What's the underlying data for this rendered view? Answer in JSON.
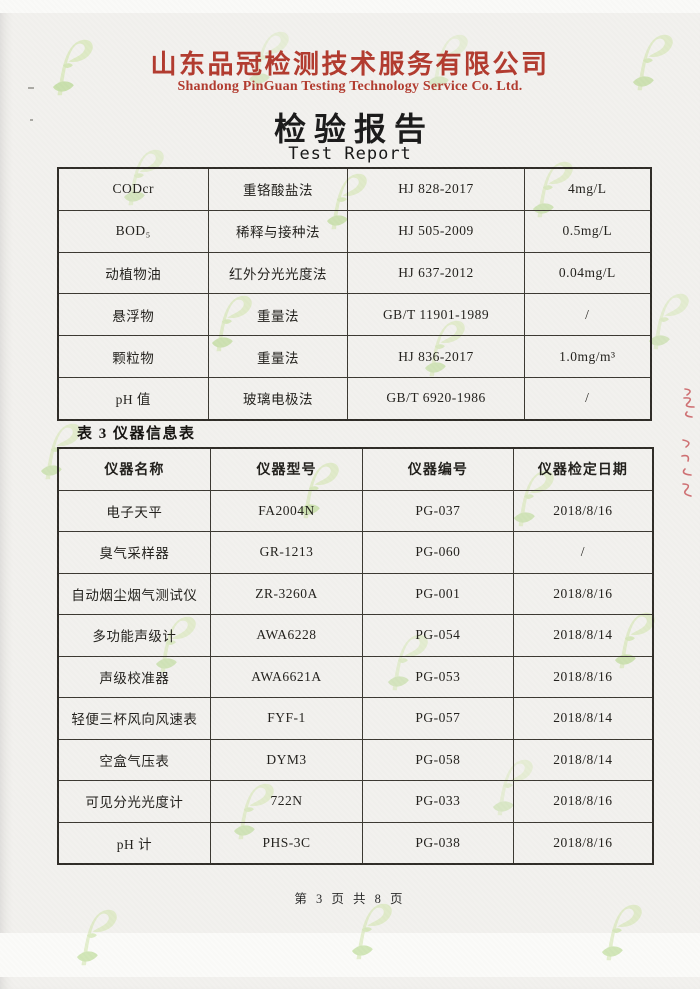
{
  "header": {
    "company_cn": "山东品冠检测技术服务有限公司",
    "company_en": "Shandong PinGuan Testing Technology Service Co. Ltd.",
    "report_title_cn": "检验报告",
    "report_title_en": "Test Report"
  },
  "analysis_table": {
    "rows": [
      [
        "CODcr",
        "重铬酸盐法",
        "HJ 828-2017",
        "4mg/L"
      ],
      [
        "BOD₅",
        "稀释与接种法",
        "HJ 505-2009",
        "0.5mg/L"
      ],
      [
        "动植物油",
        "红外分光光度法",
        "HJ 637-2012",
        "0.04mg/L"
      ],
      [
        "悬浮物",
        "重量法",
        "GB/T 11901-1989",
        "/"
      ],
      [
        "颗粒物",
        "重量法",
        "HJ 836-2017",
        "1.0mg/m³"
      ],
      [
        "pH 值",
        "玻璃电极法",
        "GB/T 6920-1986",
        "/"
      ]
    ]
  },
  "instrument_table": {
    "caption": "表 3 仪器信息表",
    "headers": [
      "仪器名称",
      "仪器型号",
      "仪器编号",
      "仪器检定日期"
    ],
    "rows": [
      [
        "电子天平",
        "FA2004N",
        "PG-037",
        "2018/8/16"
      ],
      [
        "臭气采样器",
        "GR-1213",
        "PG-060",
        "/"
      ],
      [
        "自动烟尘烟气测试仪",
        "ZR-3260A",
        "PG-001",
        "2018/8/16"
      ],
      [
        "多功能声级计",
        "AWA6228",
        "PG-054",
        "2018/8/14"
      ],
      [
        "声级校准器",
        "AWA6621A",
        "PG-053",
        "2018/8/16"
      ],
      [
        "轻便三杯风向风速表",
        "FYF-1",
        "PG-057",
        "2018/8/14"
      ],
      [
        "空盒气压表",
        "DYM3",
        "PG-058",
        "2018/8/14"
      ],
      [
        "可见分光光度计",
        "722N",
        "PG-033",
        "2018/8/16"
      ],
      [
        "pH 计",
        "PHS-3C",
        "PG-038",
        "2018/8/16"
      ]
    ]
  },
  "footer": {
    "page_indicator": "第 3 页 共 8 页"
  },
  "icons": {
    "watermark": "pinguan-leaf-logo"
  },
  "colors": {
    "header_red": "#b23a2e",
    "watermark_green_light": "#cfe5a5",
    "watermark_green_dark": "#a9d378",
    "table_border": "#38352f",
    "handwriting_red": "#c4454a"
  }
}
